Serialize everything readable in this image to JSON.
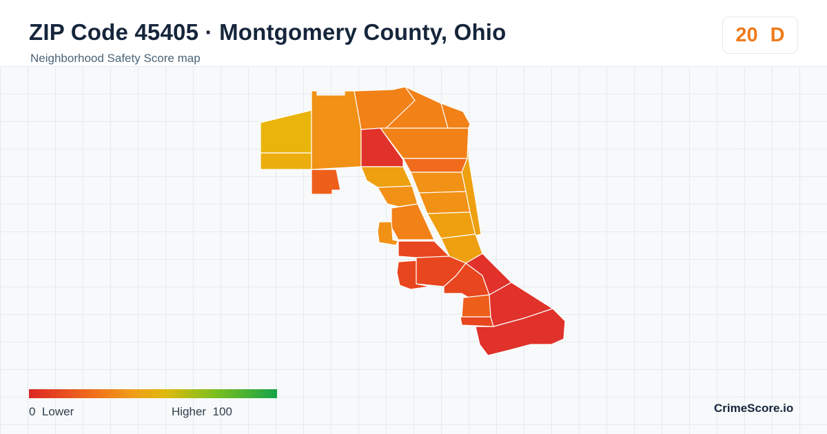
{
  "header": {
    "title": "ZIP Code 45405 · Montgomery County, Ohio",
    "subtitle": "Neighborhood Safety Score map"
  },
  "score": {
    "value": "20",
    "grade": "D",
    "color": "#ef7a1a"
  },
  "legend": {
    "min_value": "0",
    "min_label": "Lower",
    "max_label": "Higher",
    "max_value": "100",
    "gradient_colors": [
      "#dc2626",
      "#f06c1c",
      "#ef9e1a",
      "#e0b90d",
      "#7cbf1e",
      "#16a34a"
    ]
  },
  "brand": "CrimeScore.io",
  "map": {
    "region_colors": {
      "red": "#e0322a",
      "red_orange": "#e8461f",
      "dark_orange": "#ee5f1c",
      "orange": "#f28118",
      "orange_gold": "#f19115",
      "gold": "#eea011",
      "yellow_gold": "#ecae0e",
      "yellow": "#e9b40c"
    }
  }
}
